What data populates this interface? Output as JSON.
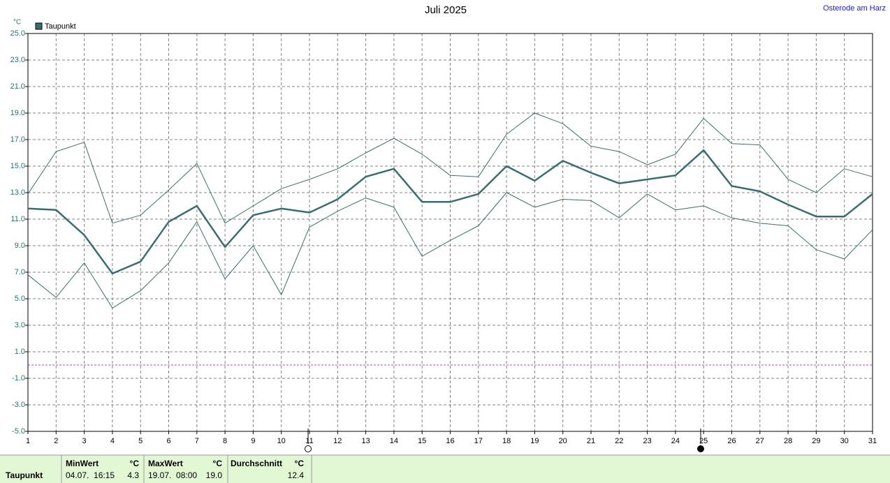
{
  "chart_data": {
    "type": "line",
    "title": "Juli 2025",
    "location": "Osterode am Harz",
    "unit": "°C",
    "x": [
      1,
      2,
      3,
      4,
      5,
      6,
      7,
      8,
      9,
      10,
      11,
      12,
      13,
      14,
      15,
      16,
      17,
      18,
      19,
      20,
      21,
      22,
      23,
      24,
      25,
      26,
      27,
      28,
      29,
      30,
      31
    ],
    "xlim": [
      1,
      31
    ],
    "ylim": [
      -5,
      25
    ],
    "yticks": [
      {
        "value": -5,
        "label": "-5.0"
      },
      {
        "value": -3,
        "label": "-3.0"
      },
      {
        "value": -1,
        "label": "-1.0"
      },
      {
        "value": 1,
        "label": "1.0"
      },
      {
        "value": 3,
        "label": "3.0"
      },
      {
        "value": 5,
        "label": "5.0"
      },
      {
        "value": 7,
        "label": "7.0"
      },
      {
        "value": 9,
        "label": "9.0"
      },
      {
        "value": 11,
        "label": "11.0"
      },
      {
        "value": 13,
        "label": "13.0"
      },
      {
        "value": 15,
        "label": "15.0"
      },
      {
        "value": 17,
        "label": "17.0"
      },
      {
        "value": 19,
        "label": "19.0"
      },
      {
        "value": 21,
        "label": "21.0"
      },
      {
        "value": 23,
        "label": "23.0"
      },
      {
        "value": 25,
        "label": "25.0"
      }
    ],
    "grid": true,
    "reference_lines": [
      {
        "value": 0,
        "color": "#c040c0"
      }
    ],
    "series": [
      {
        "name": "Taupunkt",
        "color": "#3a6e6e",
        "width": 2.5,
        "values": [
          11.8,
          11.7,
          9.8,
          6.9,
          7.8,
          10.8,
          12.0,
          8.9,
          11.3,
          11.8,
          11.5,
          12.5,
          14.2,
          14.8,
          12.3,
          12.3,
          12.9,
          15.0,
          13.9,
          15.4,
          14.5,
          13.7,
          14.0,
          14.3,
          16.2,
          13.5,
          13.1,
          12.1,
          11.2,
          11.2,
          12.9
        ]
      },
      {
        "color": "#3a6e6e",
        "width": 1,
        "values": [
          12.9,
          16.1,
          16.8,
          10.7,
          11.3,
          13.2,
          15.2,
          10.7,
          12.0,
          13.3,
          14.0,
          14.8,
          16.0,
          17.1,
          15.9,
          14.3,
          14.2,
          17.4,
          19.0,
          18.2,
          16.5,
          16.1,
          15.1,
          15.9,
          18.6,
          16.7,
          16.6,
          14.0,
          13.0,
          14.8,
          14.2
        ]
      },
      {
        "color": "#3a6e6e",
        "width": 1,
        "values": [
          6.8,
          5.1,
          7.7,
          4.3,
          5.6,
          7.7,
          10.8,
          6.5,
          9.0,
          5.3,
          10.4,
          11.6,
          12.6,
          11.9,
          8.2,
          9.4,
          10.5,
          13.0,
          11.9,
          12.5,
          12.4,
          11.1,
          12.9,
          11.7,
          12.0,
          11.1,
          10.7,
          10.5,
          8.7,
          8.0,
          10.2
        ]
      }
    ]
  },
  "stats": {
    "row_label": "Taupunkt",
    "min": {
      "header": "MinWert",
      "unit": "°C",
      "time": "04.07.  16:15",
      "value": "4.3"
    },
    "max": {
      "header": "MaxWert",
      "unit": "°C",
      "time": "19.07.  08:00",
      "value": "19.0"
    },
    "avg": {
      "header": "Durchschnitt",
      "unit": "°C",
      "value": "12.4"
    }
  }
}
